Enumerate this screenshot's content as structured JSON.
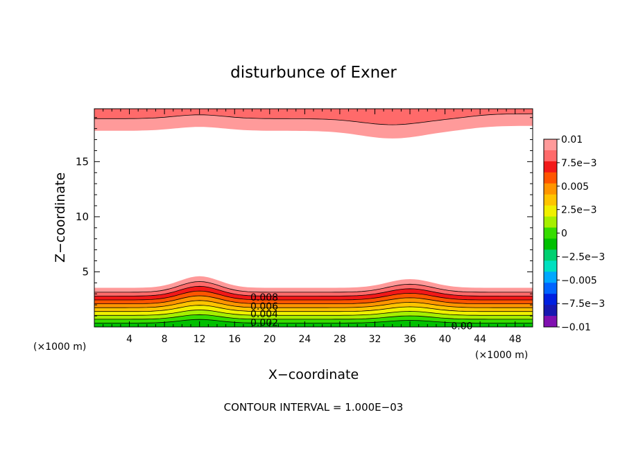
{
  "chart_data": {
    "type": "heatmap",
    "title": "disturbunce of Exner",
    "xlabel": "X−coordinate",
    "ylabel": "Z−coordinate",
    "x_unit": "(×1000 m)",
    "x_unit_right": "(×1000 m)",
    "footer": "CONTOUR INTERVAL = 1.000E−03",
    "xlim": [
      0,
      50
    ],
    "ylim": [
      0,
      19.8
    ],
    "xticks": [
      4,
      8,
      12,
      16,
      20,
      24,
      28,
      32,
      36,
      40,
      44,
      48
    ],
    "yticks": [
      5,
      10,
      15
    ],
    "colorbar": {
      "min": -0.01,
      "max": 0.01,
      "labels": [
        "0.01",
        "7.5e−3",
        "0.005",
        "2.5e−3",
        "0",
        "−2.5e−3",
        "−0.005",
        "−7.5e−3",
        "−0.01"
      ],
      "colors": [
        "#ff9a9a",
        "#ff6a6a",
        "#f21818",
        "#ff5500",
        "#ff9500",
        "#ffc400",
        "#f0f000",
        "#a6ef00",
        "#36dc00",
        "#00c000",
        "#00d070",
        "#00e0c0",
        "#00a8ff",
        "#0064ff",
        "#0020e0",
        "#1818b0",
        "#8010b0"
      ]
    },
    "contour_labels": [
      {
        "text": "0.008",
        "x": 17.8,
        "z": 2.7
      },
      {
        "text": "0.006",
        "x": 17.8,
        "z": 1.9
      },
      {
        "text": "0.004",
        "x": 17.8,
        "z": 1.2
      },
      {
        "text": "0.002",
        "x": 17.8,
        "z": 0.4
      },
      {
        "text": "0.00",
        "x": 40.7,
        "z": 0.1
      }
    ],
    "bottom_layer": {
      "levels": [
        0.0,
        0.001,
        0.002,
        0.003,
        0.004,
        0.005,
        0.006,
        0.007,
        0.008,
        0.009,
        0.01
      ],
      "band_colors": [
        "#00c000",
        "#36dc00",
        "#a6ef00",
        "#f0f000",
        "#ffc400",
        "#ff9500",
        "#ff5500",
        "#f21818",
        "#ff6a6a",
        "#ff9a9a"
      ],
      "level_heights_km": [
        0.0,
        0.35,
        0.7,
        1.05,
        1.4,
        1.75,
        2.1,
        2.45,
        2.8,
        3.15,
        3.55
      ]
    },
    "top_layer": {
      "band_colors": [
        "#ff9a9a",
        "#ff6a6a"
      ],
      "boundary_heights_km": [
        17.8,
        18.9
      ]
    }
  }
}
